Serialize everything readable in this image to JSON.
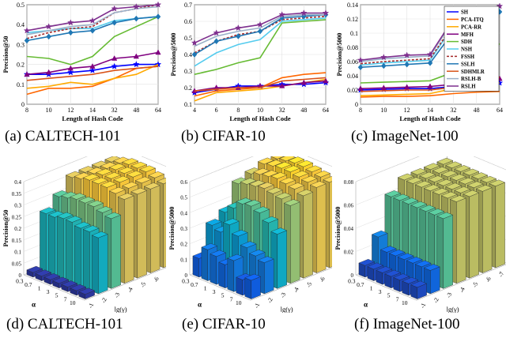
{
  "captions": {
    "a": "(a)  CALTECH-101",
    "b": "(b)  CIFAR-10",
    "c": "(c)  ImageNet-100",
    "d": "(d)  CALTECH-101",
    "e": "(e)  CIFAR-10",
    "f": "(f)  ImageNet-100"
  },
  "colors": {
    "SH": "#0000ff",
    "PCA-ITQ": "#ff6600",
    "PCA-RR": "#ffaa00",
    "MFH": "#800080",
    "SDH": "#66bb33",
    "NSH": "#55ccee",
    "FSSH": "#a52a2a",
    "SSLH": "#1f77b4",
    "SDHMLR": "#d95319",
    "RSLH-B": "#9ab0c8",
    "RSLH": "#7e2f8e"
  },
  "chart_data": [
    {
      "type": "line",
      "title": "CALTECH-101",
      "xlabel": "Length of Hash Code",
      "ylabel": "Precision@50",
      "categories": [
        "8",
        "10",
        "12",
        "14",
        "32",
        "48",
        "64"
      ],
      "ylim": [
        0,
        0.5
      ],
      "yticks": [
        "0",
        "0.1",
        "0.2",
        "0.3",
        "0.4",
        "0.5"
      ],
      "series": [
        {
          "name": "SH",
          "values": [
            0.15,
            0.15,
            0.16,
            0.17,
            0.19,
            0.2,
            0.2
          ]
        },
        {
          "name": "PCA-ITQ",
          "values": [
            0.05,
            0.08,
            0.08,
            0.09,
            0.13,
            0.18,
            0.19
          ]
        },
        {
          "name": "PCA-RR",
          "values": [
            0.08,
            0.09,
            0.11,
            0.1,
            0.13,
            0.15,
            0.2
          ]
        },
        {
          "name": "MFH",
          "values": [
            0.15,
            0.16,
            0.18,
            0.19,
            0.23,
            0.24,
            0.26
          ]
        },
        {
          "name": "SDH",
          "values": [
            0.24,
            0.23,
            0.2,
            0.24,
            0.34,
            0.39,
            0.44
          ]
        },
        {
          "name": "NSH",
          "values": [
            0.36,
            0.37,
            0.38,
            0.38,
            0.42,
            0.43,
            0.44
          ]
        },
        {
          "name": "FSSH",
          "values": [
            0.33,
            0.36,
            0.38,
            0.39,
            0.46,
            0.48,
            0.5
          ]
        },
        {
          "name": "SSLH",
          "values": [
            0.32,
            0.34,
            0.36,
            0.37,
            0.41,
            0.43,
            0.44
          ]
        },
        {
          "name": "SDHMLR",
          "values": [
            0.12,
            0.13,
            0.14,
            0.15,
            0.17,
            0.18,
            0.19
          ]
        },
        {
          "name": "RSLH-B",
          "values": [
            0.35,
            0.37,
            0.39,
            0.4,
            0.46,
            0.48,
            0.49
          ]
        },
        {
          "name": "RSLH",
          "values": [
            0.37,
            0.39,
            0.41,
            0.42,
            0.48,
            0.49,
            0.5
          ]
        }
      ]
    },
    {
      "type": "line",
      "title": "CIFAR-10",
      "xlabel": "Length of Hash Code",
      "ylabel": "Precision@5000",
      "categories": [
        "4",
        "6",
        "8",
        "10",
        "32",
        "48",
        "64"
      ],
      "ylim": [
        0.1,
        0.7
      ],
      "yticks": [
        "0.1",
        "0.2",
        "0.3",
        "0.4",
        "0.5",
        "0.6",
        "0.7"
      ],
      "series": [
        {
          "name": "SH",
          "values": [
            0.17,
            0.19,
            0.21,
            0.21,
            0.22,
            0.22,
            0.23
          ]
        },
        {
          "name": "PCA-ITQ",
          "values": [
            0.15,
            0.18,
            0.19,
            0.2,
            0.26,
            0.28,
            0.29
          ]
        },
        {
          "name": "PCA-RR",
          "values": [
            0.12,
            0.17,
            0.18,
            0.19,
            0.21,
            0.23,
            0.25
          ]
        },
        {
          "name": "MFH",
          "values": [
            0.18,
            0.2,
            0.2,
            0.21,
            0.21,
            0.23,
            0.24
          ]
        },
        {
          "name": "SDH",
          "values": [
            0.28,
            0.31,
            0.35,
            0.38,
            0.59,
            0.6,
            0.61
          ]
        },
        {
          "name": "NSH",
          "values": [
            0.33,
            0.41,
            0.46,
            0.49,
            0.6,
            0.61,
            0.62
          ]
        },
        {
          "name": "FSSH",
          "values": [
            0.41,
            0.48,
            0.52,
            0.54,
            0.61,
            0.62,
            0.63
          ]
        },
        {
          "name": "SSLH",
          "values": [
            0.4,
            0.48,
            0.51,
            0.54,
            0.62,
            0.63,
            0.64
          ]
        },
        {
          "name": "SDHMLR",
          "values": [
            0.18,
            0.19,
            0.2,
            0.2,
            0.24,
            0.25,
            0.26
          ]
        },
        {
          "name": "RSLH-B",
          "values": [
            0.45,
            0.51,
            0.54,
            0.56,
            0.63,
            0.64,
            0.64
          ]
        },
        {
          "name": "RSLH",
          "values": [
            0.47,
            0.53,
            0.56,
            0.58,
            0.64,
            0.65,
            0.65
          ]
        }
      ]
    },
    {
      "type": "line",
      "title": "ImageNet-100",
      "xlabel": "Length of Hash Code",
      "ylabel": "Precision@5000",
      "categories": [
        "8",
        "10",
        "12",
        "14",
        "32",
        "48",
        "64"
      ],
      "ylim": [
        0,
        0.14
      ],
      "yticks": [
        "0",
        "0.02",
        "0.04",
        "0.06",
        "0.08",
        "0.1",
        "0.12",
        "0.14"
      ],
      "series": [
        {
          "name": "SH",
          "values": [
            0.02,
            0.021,
            0.022,
            0.022,
            0.025,
            0.028,
            0.03
          ]
        },
        {
          "name": "PCA-ITQ",
          "values": [
            0.01,
            0.011,
            0.011,
            0.012,
            0.015,
            0.017,
            0.018
          ]
        },
        {
          "name": "PCA-RR",
          "values": [
            0.012,
            0.013,
            0.014,
            0.015,
            0.022,
            0.026,
            0.03
          ]
        },
        {
          "name": "MFH",
          "values": [
            0.022,
            0.023,
            0.024,
            0.025,
            0.028,
            0.032,
            0.036
          ]
        },
        {
          "name": "SDH",
          "values": [
            0.03,
            0.031,
            0.032,
            0.033,
            0.045,
            0.068,
            0.085
          ]
        },
        {
          "name": "NSH",
          "values": [
            0.055,
            0.058,
            0.06,
            0.062,
            0.11,
            0.125,
            0.135
          ]
        },
        {
          "name": "FSSH",
          "values": [
            0.057,
            0.06,
            0.062,
            0.064,
            0.112,
            0.127,
            0.137
          ]
        },
        {
          "name": "SSLH",
          "values": [
            0.052,
            0.054,
            0.056,
            0.058,
            0.102,
            0.118,
            0.13
          ]
        },
        {
          "name": "SDHMLR",
          "values": [
            0.018,
            0.019,
            0.02,
            0.02,
            0.024,
            0.03,
            0.038
          ]
        },
        {
          "name": "RSLH-B",
          "values": [
            0.06,
            0.064,
            0.066,
            0.068,
            0.118,
            0.13,
            0.136
          ]
        },
        {
          "name": "RSLH",
          "values": [
            0.062,
            0.066,
            0.069,
            0.07,
            0.12,
            0.132,
            0.138
          ]
        }
      ]
    },
    {
      "type": "bar3d",
      "title": "CALTECH-101",
      "xlabel": "α",
      "ylabel": "lg(γ)",
      "zlabel": "Precision@50",
      "alpha_ticks": [
        "0.3",
        "0.7",
        "1",
        "3",
        "5",
        "7",
        "10"
      ],
      "gamma_ticks": [
        "-1",
        "-2",
        "-3",
        "-4",
        "-5",
        "-6",
        "-7"
      ],
      "zticks": [
        "0",
        "0.05",
        "0.1",
        "0.15",
        "0.2",
        "0.25",
        "0.3",
        "0.35",
        "0.4"
      ],
      "zlim": [
        0,
        0.4
      ],
      "values": [
        [
          0.02,
          0.25,
          0.3,
          0.36,
          0.36,
          0.36,
          0.36
        ],
        [
          0.02,
          0.25,
          0.31,
          0.37,
          0.37,
          0.37,
          0.37
        ],
        [
          0.02,
          0.26,
          0.32,
          0.38,
          0.38,
          0.38,
          0.38
        ],
        [
          0.02,
          0.26,
          0.32,
          0.38,
          0.38,
          0.38,
          0.38
        ],
        [
          0.02,
          0.25,
          0.32,
          0.38,
          0.38,
          0.38,
          0.38
        ],
        [
          0.02,
          0.25,
          0.31,
          0.37,
          0.37,
          0.37,
          0.37
        ],
        [
          0.02,
          0.24,
          0.3,
          0.36,
          0.36,
          0.36,
          0.36
        ]
      ]
    },
    {
      "type": "bar3d",
      "title": "CIFAR-10",
      "xlabel": "α",
      "ylabel": "lg(γ)",
      "zlabel": "Precision@5000",
      "alpha_ticks": [
        "0.3",
        "0.7",
        "1",
        "3",
        "5",
        "7",
        "10"
      ],
      "gamma_ticks": [
        "-1",
        "-2",
        "-3",
        "-4",
        "-5",
        "-6",
        "-7"
      ],
      "zticks": [
        "0",
        "0.1",
        "0.2",
        "0.3",
        "0.4",
        "0.5",
        "0.6"
      ],
      "zlim": [
        0,
        0.6
      ],
      "values": [
        [
          0.12,
          0.3,
          0.35,
          0.5,
          0.53,
          0.56,
          0.56
        ],
        [
          0.2,
          0.28,
          0.4,
          0.52,
          0.55,
          0.57,
          0.57
        ],
        [
          0.18,
          0.35,
          0.45,
          0.53,
          0.56,
          0.58,
          0.58
        ],
        [
          0.15,
          0.3,
          0.46,
          0.54,
          0.57,
          0.58,
          0.58
        ],
        [
          0.2,
          0.25,
          0.44,
          0.53,
          0.56,
          0.57,
          0.57
        ],
        [
          0.1,
          0.22,
          0.4,
          0.52,
          0.55,
          0.56,
          0.56
        ],
        [
          0.12,
          0.2,
          0.35,
          0.5,
          0.53,
          0.55,
          0.55
        ]
      ]
    },
    {
      "type": "bar3d",
      "title": "ImageNet-100",
      "xlabel": "α",
      "ylabel": "lg(γ)",
      "zlabel": "Precision@5000",
      "alpha_ticks": [
        "0.3",
        "0.7",
        "1",
        "3",
        "5",
        "7",
        "10"
      ],
      "gamma_ticks": [
        "-1",
        "-2",
        "-3",
        "-4",
        "-5",
        "-6",
        "-7"
      ],
      "zticks": [
        "0",
        "0.02",
        "0.04",
        "0.06",
        "0.08"
      ],
      "zlim": [
        0,
        0.08
      ],
      "values": [
        [
          0.01,
          0.03,
          0.06,
          0.07,
          0.07,
          0.07,
          0.07
        ],
        [
          0.01,
          0.02,
          0.06,
          0.07,
          0.07,
          0.07,
          0.07
        ],
        [
          0.01,
          0.02,
          0.06,
          0.07,
          0.07,
          0.07,
          0.07
        ],
        [
          0.01,
          0.02,
          0.06,
          0.07,
          0.07,
          0.07,
          0.07
        ],
        [
          0.01,
          0.02,
          0.06,
          0.07,
          0.07,
          0.07,
          0.07
        ],
        [
          0.01,
          0.02,
          0.06,
          0.07,
          0.07,
          0.07,
          0.07
        ],
        [
          0.01,
          0.02,
          0.06,
          0.07,
          0.07,
          0.07,
          0.07
        ]
      ]
    }
  ]
}
